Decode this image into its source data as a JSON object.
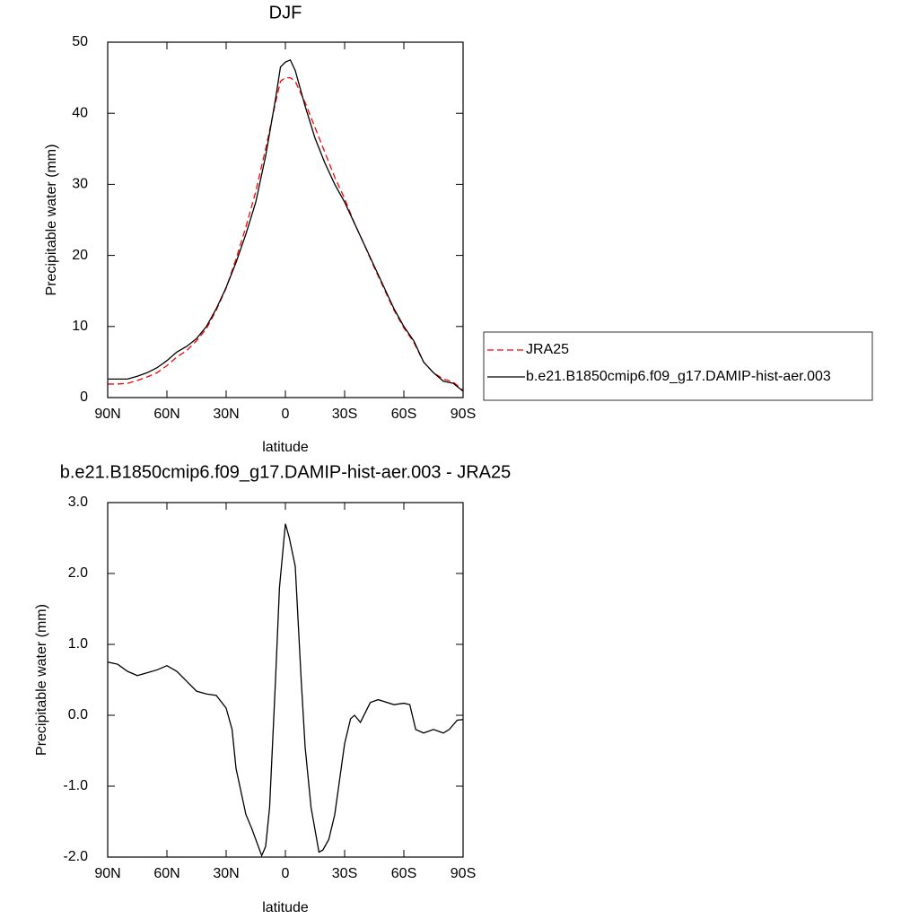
{
  "chart_data": [
    {
      "type": "line",
      "title": "DJF",
      "xlabel": "latitude",
      "ylabel": "Precipitable water (mm)",
      "x": [
        90,
        85,
        80,
        75,
        70,
        65,
        60,
        55,
        50,
        45,
        40,
        35,
        30,
        25,
        20,
        15,
        10,
        5,
        2.5,
        0,
        -2.5,
        -5,
        -10,
        -15,
        -20,
        -25,
        -30,
        -35,
        -40,
        -45,
        -50,
        -55,
        -60,
        -65,
        -70,
        -75,
        -80,
        -85,
        -90
      ],
      "xlim": [
        90,
        -90
      ],
      "xticks": [
        {
          "value": 90,
          "label": "90N"
        },
        {
          "value": 60,
          "label": "60N"
        },
        {
          "value": 30,
          "label": "30N"
        },
        0,
        {
          "value": -30,
          "label": "30S"
        },
        {
          "value": -60,
          "label": "60S"
        },
        {
          "value": -90,
          "label": "90S"
        }
      ],
      "ylim": [
        0,
        50
      ],
      "yticks": [
        0,
        10,
        20,
        30,
        40,
        50
      ],
      "legend": "right",
      "series": [
        {
          "name": "JRA25",
          "color": "#ff0000",
          "dash": true,
          "values": [
            1.9,
            1.9,
            2.0,
            2.4,
            2.9,
            3.5,
            4.5,
            5.7,
            6.6,
            8.0,
            9.7,
            12.3,
            15.4,
            19.5,
            24,
            29,
            35,
            41.5,
            44.5,
            45,
            45,
            44.5,
            41.5,
            38,
            34.5,
            31,
            28,
            24.5,
            21.5,
            18.3,
            15.3,
            12.3,
            9.8,
            7.8,
            5,
            3.5,
            2.6,
            2.2,
            1.0
          ]
        },
        {
          "name": "b.e21.B1850cmip6.f09_g17.DAMIP-hist-aer.003",
          "color": "#000000",
          "dash": false,
          "values": [
            2.6,
            2.6,
            2.6,
            3.0,
            3.5,
            4.2,
            5.2,
            6.4,
            7.2,
            8.3,
            10,
            12.5,
            15.5,
            19,
            23,
            27.5,
            34,
            42,
            46.5,
            47.2,
            47.5,
            46,
            41,
            36.5,
            33,
            30,
            27.5,
            24.5,
            21.5,
            18.5,
            15.5,
            12.5,
            10,
            8,
            5,
            3.5,
            2.3,
            2,
            0.9
          ]
        }
      ]
    },
    {
      "type": "line",
      "title": "b.e21.B1850cmip6.f09_g17.DAMIP-hist-aer.003 - JRA25",
      "xlabel": "latitude",
      "ylabel": "Precipitable water (mm)",
      "x": [
        90,
        85,
        80,
        75,
        70,
        65,
        60,
        55,
        50,
        45,
        40,
        35,
        30,
        27,
        25,
        20,
        17,
        12,
        10,
        8,
        5,
        3,
        0,
        -2,
        -5,
        -8,
        -10,
        -13,
        -17,
        -19,
        -22,
        -25,
        -30,
        -33,
        -35,
        -38,
        -43,
        -47,
        -55,
        -60,
        -63,
        -66,
        -70,
        -75,
        -80,
        -83,
        -87,
        -90
      ],
      "xlim": [
        90,
        -90
      ],
      "xticks": [
        {
          "value": 90,
          "label": "90N"
        },
        {
          "value": 60,
          "label": "60N"
        },
        {
          "value": 30,
          "label": "30N"
        },
        0,
        {
          "value": -30,
          "label": "30S"
        },
        {
          "value": -60,
          "label": "60S"
        },
        {
          "value": -90,
          "label": "90S"
        }
      ],
      "ylim": [
        -2,
        3
      ],
      "yticks": [
        {
          "value": -2,
          "label": "-2.0"
        },
        {
          "value": -1,
          "label": "-1.0"
        },
        {
          "value": 0,
          "label": "0.0"
        },
        {
          "value": 1,
          "label": "1.0"
        },
        {
          "value": 2,
          "label": "2.0"
        },
        {
          "value": 3,
          "label": "3.0"
        }
      ],
      "series": [
        {
          "color": "#000000",
          "dash": false,
          "values": [
            0.75,
            0.72,
            0.62,
            0.56,
            0.6,
            0.64,
            0.7,
            0.62,
            0.48,
            0.34,
            0.3,
            0.28,
            0.1,
            -0.2,
            -0.75,
            -1.4,
            -1.6,
            -1.98,
            -1.85,
            -1.3,
            0.5,
            1.8,
            2.7,
            2.5,
            2.1,
            0.5,
            -0.45,
            -1.3,
            -1.93,
            -1.9,
            -1.75,
            -1.4,
            -0.4,
            -0.05,
            0.0,
            -0.1,
            0.18,
            0.22,
            0.15,
            0.17,
            0.15,
            -0.2,
            -0.25,
            -0.2,
            -0.25,
            -0.2,
            -0.07,
            -0.06
          ]
        }
      ]
    }
  ]
}
